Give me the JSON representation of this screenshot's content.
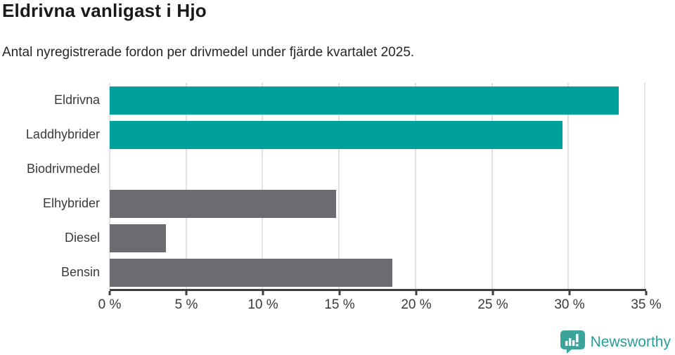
{
  "header": {
    "title": "Eldrivna vanligast i Hjo",
    "subtitle": "Antal nyregistrerade fordon per drivmedel under fjärde kvartalet 2025."
  },
  "chart_data": {
    "type": "bar",
    "orientation": "horizontal",
    "title": "Eldrivna vanligast i Hjo",
    "subtitle": "Antal nyregistrerade fordon per drivmedel under fjärde kvartalet 2025.",
    "categories": [
      "Eldrivna",
      "Laddhybrider",
      "Biodrivmedel",
      "Elhybrider",
      "Diesel",
      "Bensin"
    ],
    "values": [
      33.3,
      29.6,
      0,
      14.8,
      3.7,
      18.5
    ],
    "unit": "%",
    "xlim": [
      0,
      35
    ],
    "x_ticks": [
      0,
      5,
      10,
      15,
      20,
      25,
      30,
      35
    ],
    "x_tick_labels": [
      "0 %",
      "5 %",
      "10 %",
      "15 %",
      "20 %",
      "25 %",
      "30 %",
      "35 %"
    ],
    "bar_colors": [
      "#00a19a",
      "#00a19a",
      "#6c6b71",
      "#6c6b71",
      "#6c6b71",
      "#6c6b71"
    ],
    "xlabel": "",
    "ylabel": "",
    "grid": true,
    "legend_position": "none"
  },
  "colors": {
    "highlight_bar": "#00a19a",
    "default_bar": "#6c6b71",
    "gridline": "#e1e1e1",
    "axis": "#3d3d3d",
    "title_text": "#191919",
    "label_text": "#3a3a3a"
  },
  "footer": {
    "brand": "Newsworthy",
    "brand_color": "#2a9d97",
    "logo_icon": "newsworthy-speech-bubble-bar-chart-icon",
    "logo_icon_color": "#3aa39b"
  }
}
